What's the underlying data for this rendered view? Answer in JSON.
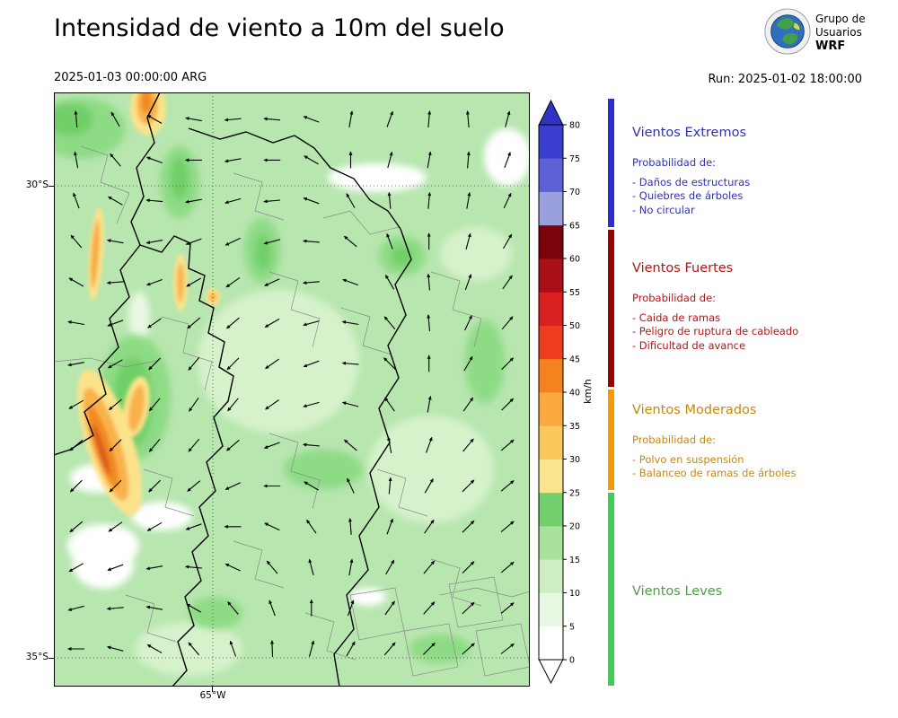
{
  "header": {
    "title": "Intensidad de viento a 10m del suelo",
    "valid_time": "2025-01-03 00:00:00 ARG",
    "run_label": "Run: 2025-01-02 18:00:00",
    "logo": {
      "line1": "Grupo de",
      "line2": "Usuarios",
      "line3": "WRF"
    }
  },
  "map": {
    "lat_ticks": [
      "30°S",
      "35°S"
    ],
    "lon_ticks": [
      "65°W"
    ]
  },
  "colorbar": {
    "unit": "km/h",
    "ticks": [
      0,
      5,
      10,
      15,
      20,
      25,
      30,
      35,
      40,
      45,
      50,
      55,
      60,
      65,
      70,
      75,
      80
    ],
    "segments": [
      "#ffffff",
      "#e9f8e2",
      "#cdeec3",
      "#a9e29c",
      "#74cf6e",
      "#fae48e",
      "#f9c95c",
      "#f9a93e",
      "#f4831f",
      "#ef3c20",
      "#d91f20",
      "#a80f16",
      "#7a040e",
      "#9aa0dc",
      "#5c61d6",
      "#3a3ed0"
    ],
    "over_color": "#2f33c4",
    "under_color": "#ffffff"
  },
  "legend": {
    "sections": [
      {
        "title": "Vientos Extremos",
        "text_color": "#3030b8",
        "bar_color": "#2d2dd4",
        "intro": "Probabilidad de:",
        "lines": [
          "- Daños de estructuras",
          "- Quiebres de árboles",
          "- No circular"
        ]
      },
      {
        "title": "Vientos Fuertes",
        "text_color": "#b51616",
        "bar_color": "#9b0000",
        "intro": "Probabilidad de:",
        "lines": [
          "- Caida de ramas",
          "- Peligro de ruptura de cableado",
          "- Dificultad de avance"
        ]
      },
      {
        "title": "Vientos Moderados",
        "text_color": "#c8880e",
        "bar_color": "#f59a00",
        "intro": "Probabilidad de:",
        "lines": [
          "- Polvo en suspensión",
          "- Balanceo de ramas de árboles"
        ]
      },
      {
        "title": "Vientos Leves",
        "text_color": "#4f9e4a",
        "bar_color": "#3fcf55",
        "intro": "",
        "lines": []
      }
    ]
  },
  "chart_data": {
    "type": "heatmap",
    "title": "Intensidad de viento a 10m del suelo",
    "valid_time": "2025-01-03 00:00:00 ARG",
    "run": "2025-01-02 18:00:00",
    "units": "km/h",
    "colorbar_levels": [
      0,
      5,
      10,
      15,
      20,
      25,
      30,
      35,
      40,
      45,
      50,
      55,
      60,
      65,
      70,
      75,
      80
    ],
    "lat_ticks": [
      "30°S",
      "35°S"
    ],
    "lon_ticks": [
      "65°W"
    ],
    "categories": [
      {
        "name": "Vientos Leves",
        "range_kmh": [
          0,
          25
        ]
      },
      {
        "name": "Vientos Moderados",
        "range_kmh": [
          25,
          40
        ]
      },
      {
        "name": "Vientos Fuertes",
        "range_kmh": [
          40,
          65
        ]
      },
      {
        "name": "Vientos Extremos",
        "range_kmh": [
          65,
          80
        ]
      }
    ]
  },
  "wind_field": {
    "angles": [
      [
        95,
        120,
        150,
        170,
        185,
        175,
        160,
        80,
        70,
        85,
        95,
        75
      ],
      [
        100,
        130,
        160,
        180,
        190,
        180,
        150,
        90,
        75,
        80,
        85,
        70
      ],
      [
        110,
        150,
        175,
        190,
        195,
        185,
        160,
        120,
        95,
        85,
        80,
        65
      ],
      [
        130,
        170,
        190,
        200,
        205,
        195,
        175,
        140,
        110,
        90,
        75,
        60
      ],
      [
        150,
        185,
        200,
        210,
        215,
        205,
        185,
        160,
        120,
        95,
        70,
        55
      ],
      [
        170,
        200,
        215,
        220,
        220,
        210,
        195,
        170,
        130,
        95,
        65,
        50
      ],
      [
        190,
        210,
        225,
        230,
        225,
        215,
        200,
        175,
        135,
        90,
        60,
        45
      ],
      [
        210,
        220,
        230,
        235,
        230,
        215,
        195,
        165,
        125,
        80,
        55,
        45
      ],
      [
        220,
        225,
        230,
        230,
        220,
        200,
        175,
        140,
        100,
        70,
        50,
        40
      ],
      [
        225,
        225,
        225,
        220,
        205,
        180,
        150,
        115,
        85,
        60,
        45,
        40
      ],
      [
        220,
        215,
        210,
        200,
        180,
        155,
        125,
        95,
        70,
        55,
        45,
        40
      ],
      [
        210,
        200,
        190,
        175,
        155,
        130,
        105,
        80,
        60,
        50,
        45,
        40
      ],
      [
        195,
        185,
        170,
        150,
        130,
        110,
        90,
        70,
        55,
        48,
        44,
        40
      ],
      [
        180,
        165,
        150,
        130,
        110,
        92,
        75,
        60,
        50,
        45,
        42,
        38
      ]
    ]
  }
}
